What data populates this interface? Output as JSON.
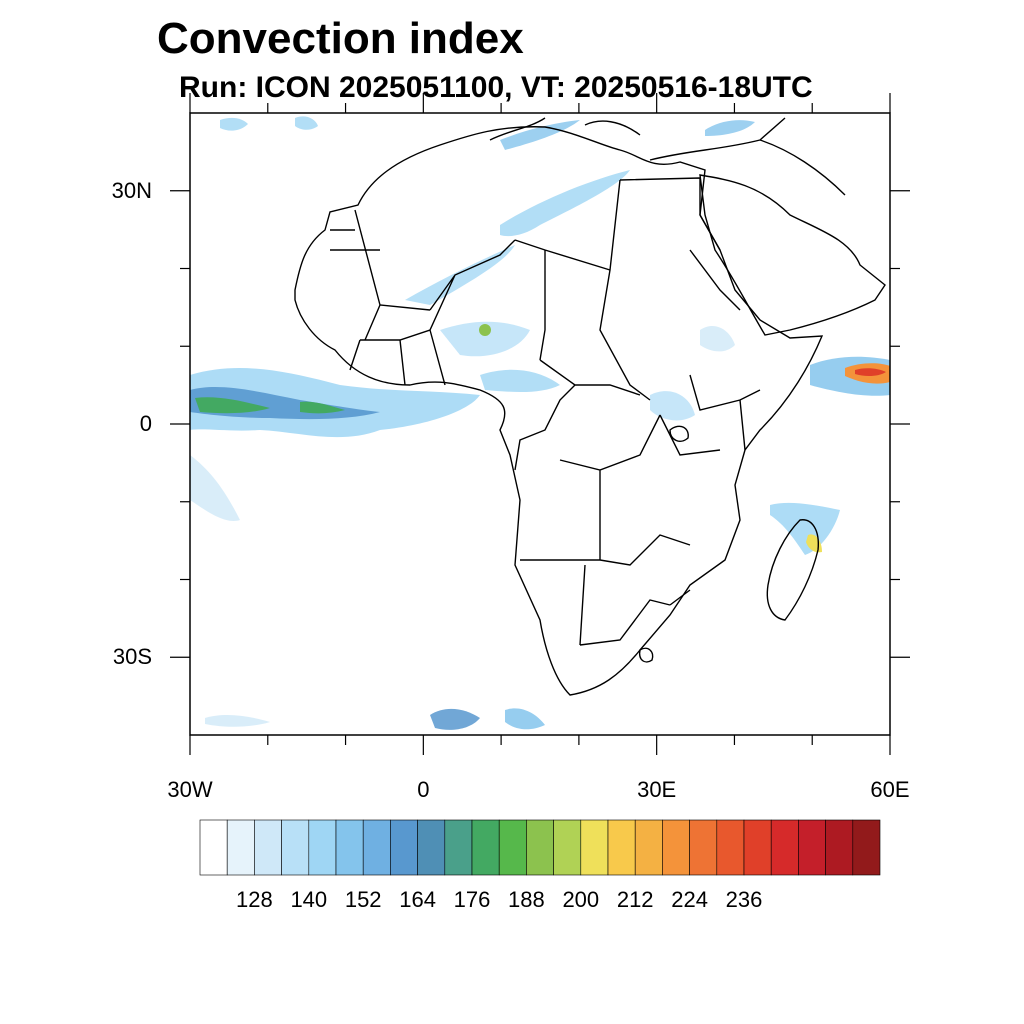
{
  "title": "Convection index",
  "subtitle": "Run: ICON 2025051100,  VT: 20250516-18UTC",
  "map": {
    "lon_range": [
      -30,
      60
    ],
    "lat_range": [
      -40,
      40
    ],
    "lat_ticks": [
      {
        "value": 30,
        "label": "30N"
      },
      {
        "value": 0,
        "label": "0"
      },
      {
        "value": -30,
        "label": "30S"
      }
    ],
    "lon_ticks": [
      {
        "value": -30,
        "label": "30W"
      },
      {
        "value": 0,
        "label": "0"
      },
      {
        "value": 30,
        "label": "30E"
      },
      {
        "value": 60,
        "label": "60E"
      }
    ]
  },
  "colorbar": {
    "colors": [
      "#ffffff",
      "#e6f3fb",
      "#cfe8f8",
      "#b8e0f7",
      "#9fd6f4",
      "#84c4ec",
      "#6fb0e2",
      "#5898cf",
      "#4f8fb5",
      "#4aa08a",
      "#43a962",
      "#56b84b",
      "#8cc24e",
      "#b0d255",
      "#efe05a",
      "#f8c94b",
      "#f4b143",
      "#f4933a",
      "#ee7334",
      "#e8582d",
      "#e04029",
      "#d62a2a",
      "#c41f2a",
      "#ad1a22",
      "#921a1b"
    ],
    "labels": [
      "128",
      "140",
      "152",
      "164",
      "176",
      "188",
      "200",
      "212",
      "224",
      "236"
    ]
  }
}
